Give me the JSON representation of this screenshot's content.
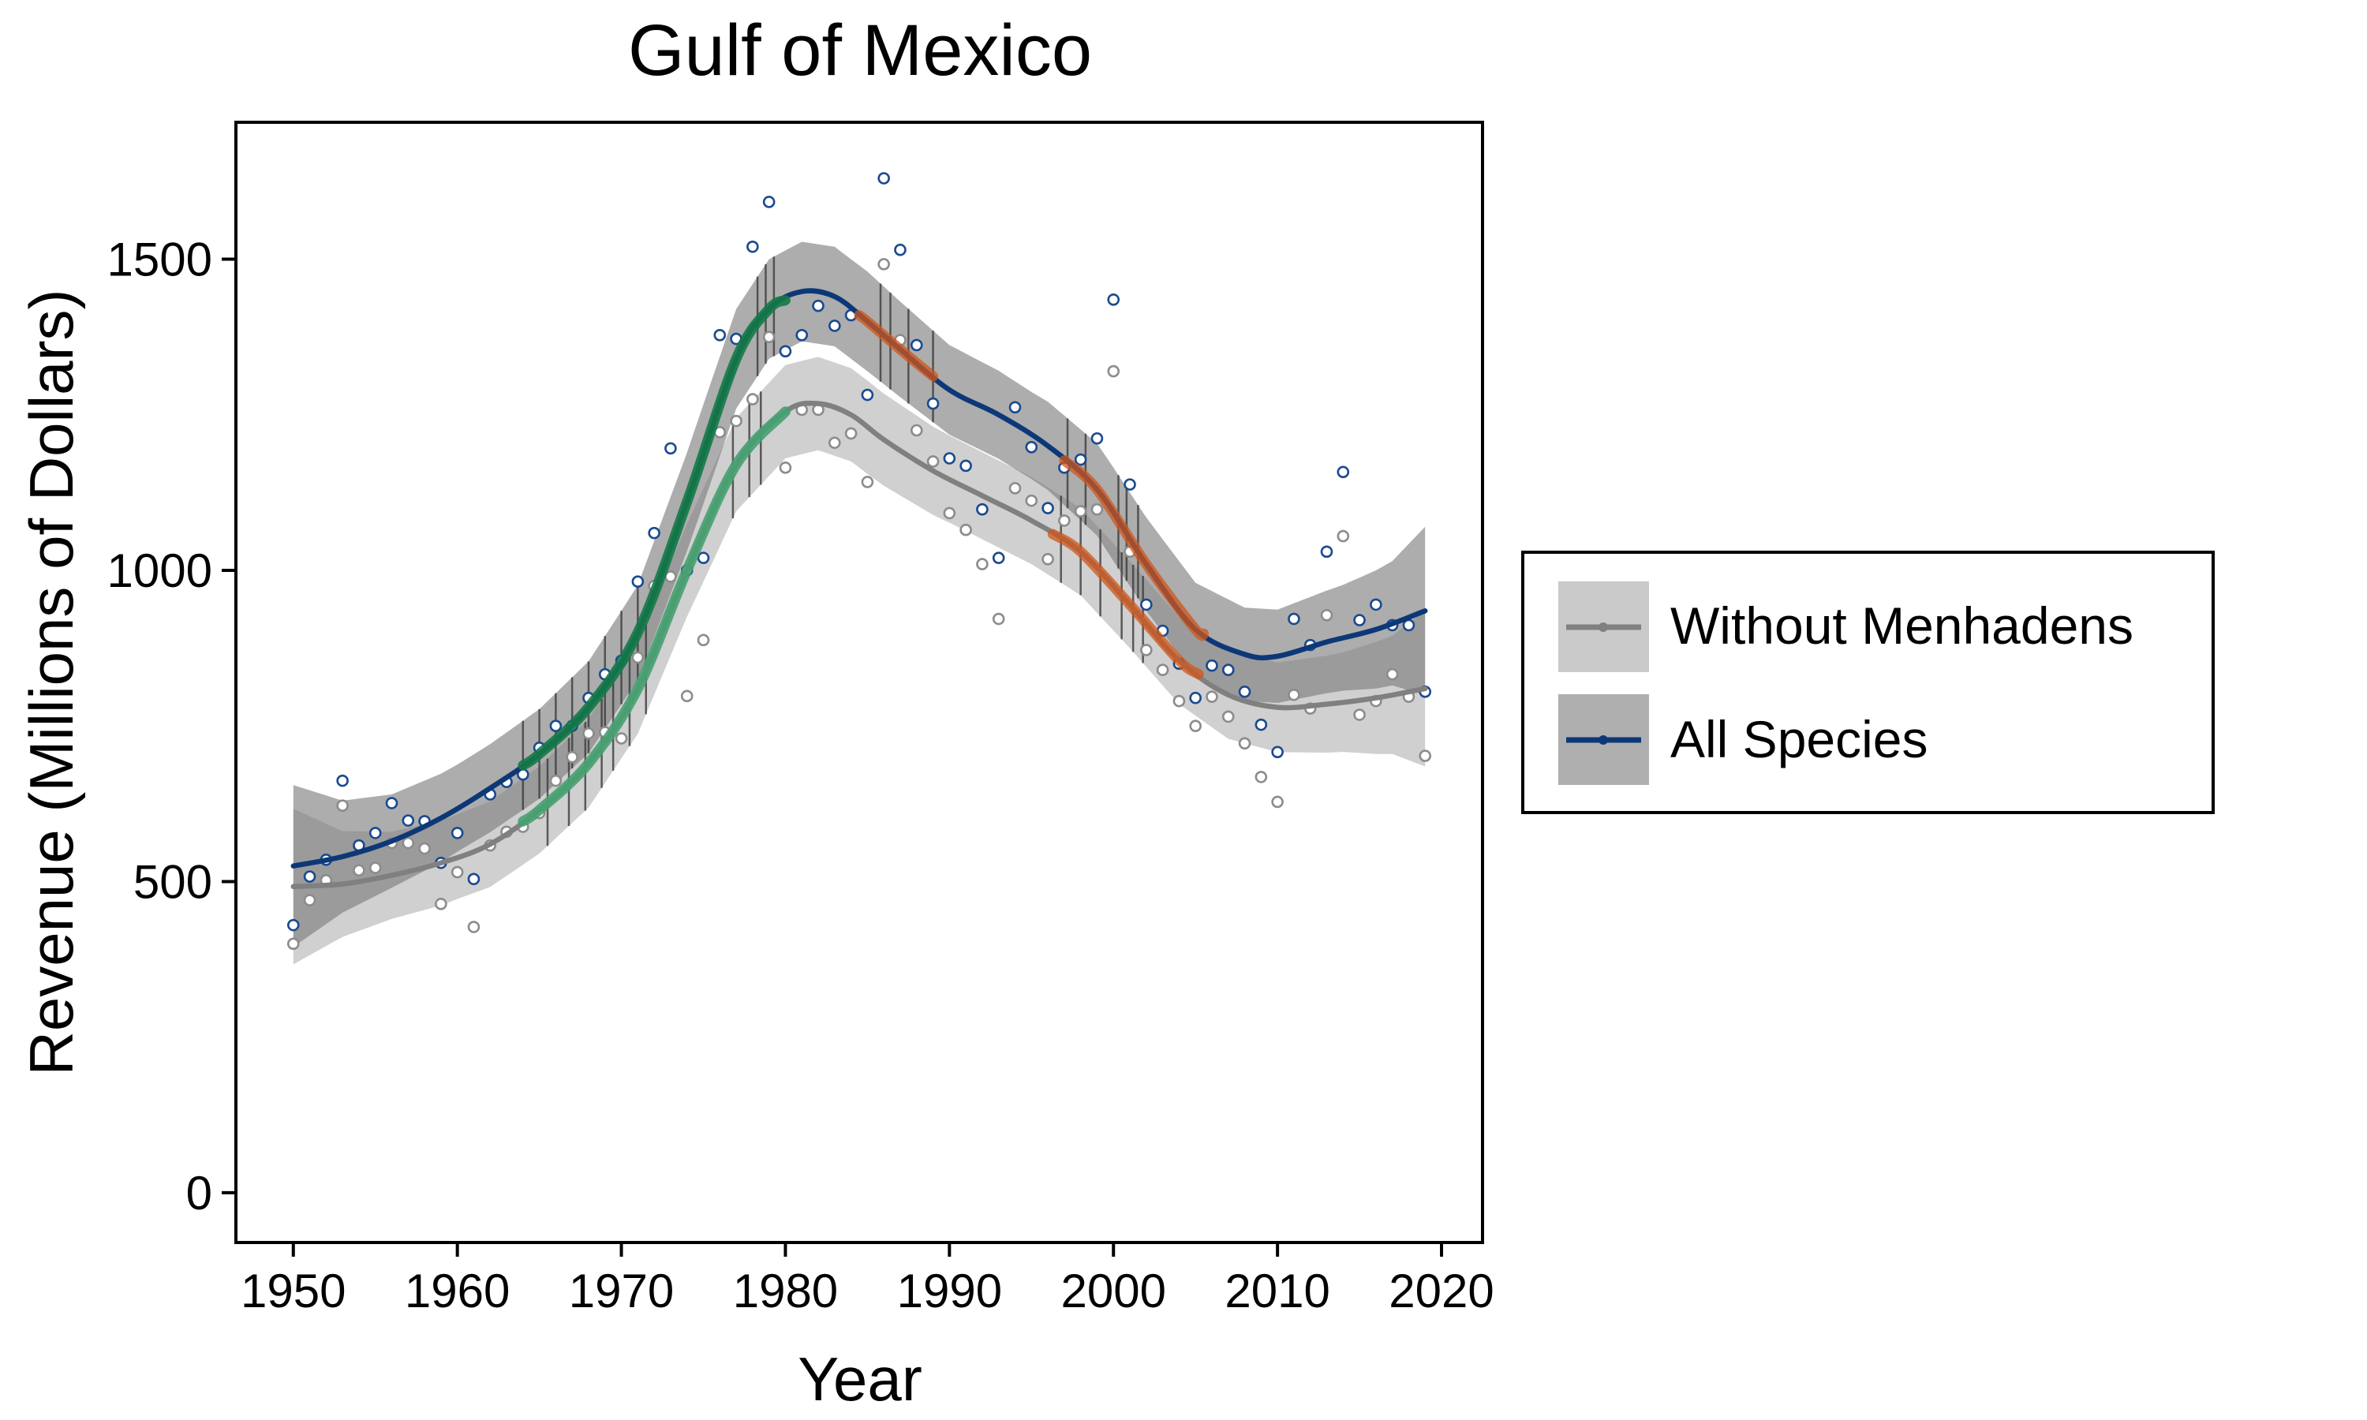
{
  "chart_data": {
    "type": "scatter",
    "title": "Gulf of Mexico",
    "xlabel": "Year",
    "ylabel": "Revenue (Millions of Dollars)",
    "xlim": [
      1946.5,
      2022.5
    ],
    "ylim": [
      -80,
      1720
    ],
    "xticks": [
      1950,
      1960,
      1970,
      1980,
      1990,
      2000,
      2010,
      2020
    ],
    "yticks": [
      0,
      500,
      1000,
      1500
    ],
    "grid": false,
    "legend_position": "right",
    "colors": {
      "all_species": "#0d3878",
      "all_species_points": "#1a4a90",
      "without_menhadens": "#808080",
      "without_menhadens_points": "#8c8c8c",
      "band_all": "#7a7a7a",
      "band_without": "#b3b3b3",
      "increase": "#147a46",
      "increase_light": "#45a070",
      "decrease": "#d0561a",
      "marks": "#3c3c3c"
    },
    "series": [
      {
        "name": "All Species",
        "key": "all_species",
        "points": [
          [
            1950,
            430
          ],
          [
            1951,
            508
          ],
          [
            1952,
            535
          ],
          [
            1953,
            662
          ],
          [
            1954,
            558
          ],
          [
            1955,
            578
          ],
          [
            1956,
            626
          ],
          [
            1957,
            598
          ],
          [
            1958,
            597
          ],
          [
            1959,
            530
          ],
          [
            1960,
            578
          ],
          [
            1961,
            504
          ],
          [
            1962,
            640
          ],
          [
            1963,
            660
          ],
          [
            1964,
            672
          ],
          [
            1965,
            715
          ],
          [
            1966,
            750
          ],
          [
            1967,
            750
          ],
          [
            1968,
            795
          ],
          [
            1969,
            833
          ],
          [
            1970,
            855
          ],
          [
            1971,
            982
          ],
          [
            1972,
            1060
          ],
          [
            1973,
            1196
          ],
          [
            1974,
            1000
          ],
          [
            1975,
            1020
          ],
          [
            1976,
            1378
          ],
          [
            1977,
            1372
          ],
          [
            1978,
            1520
          ],
          [
            1979,
            1592
          ],
          [
            1980,
            1352
          ],
          [
            1981,
            1378
          ],
          [
            1982,
            1425
          ],
          [
            1983,
            1393
          ],
          [
            1984,
            1410
          ],
          [
            1985,
            1282
          ],
          [
            1986,
            1630
          ],
          [
            1987,
            1515
          ],
          [
            1988,
            1362
          ],
          [
            1989,
            1268
          ],
          [
            1990,
            1180
          ],
          [
            1991,
            1168
          ],
          [
            1992,
            1098
          ],
          [
            1993,
            1020
          ],
          [
            1994,
            1262
          ],
          [
            1995,
            1198
          ],
          [
            1996,
            1100
          ],
          [
            1997,
            1165
          ],
          [
            1998,
            1178
          ],
          [
            1999,
            1212
          ],
          [
            2000,
            1435
          ],
          [
            2001,
            1138
          ],
          [
            2002,
            945
          ],
          [
            2003,
            903
          ],
          [
            2004,
            850
          ],
          [
            2005,
            795
          ],
          [
            2006,
            847
          ],
          [
            2007,
            840
          ],
          [
            2008,
            805
          ],
          [
            2009,
            752
          ],
          [
            2010,
            708
          ],
          [
            2011,
            922
          ],
          [
            2012,
            880
          ],
          [
            2013,
            1030
          ],
          [
            2014,
            1158
          ],
          [
            2015,
            920
          ],
          [
            2016,
            945
          ],
          [
            2017,
            912
          ],
          [
            2018,
            912
          ],
          [
            2019,
            805
          ]
        ],
        "fit": [
          [
            1950,
            525
          ],
          [
            1953,
            540
          ],
          [
            1956,
            565
          ],
          [
            1959,
            602
          ],
          [
            1962,
            650
          ],
          [
            1965,
            705
          ],
          [
            1968,
            780
          ],
          [
            1971,
            900
          ],
          [
            1974,
            1110
          ],
          [
            1977,
            1340
          ],
          [
            1979,
            1420
          ],
          [
            1981,
            1448
          ],
          [
            1983,
            1440
          ],
          [
            1985,
            1400
          ],
          [
            1987,
            1355
          ],
          [
            1990,
            1290
          ],
          [
            1993,
            1250
          ],
          [
            1996,
            1200
          ],
          [
            1999,
            1130
          ],
          [
            2002,
            1010
          ],
          [
            2005,
            905
          ],
          [
            2008,
            865
          ],
          [
            2010,
            862
          ],
          [
            2013,
            885
          ],
          [
            2016,
            905
          ],
          [
            2019,
            935
          ]
        ],
        "band_half_width": [
          [
            1950,
            130
          ],
          [
            1953,
            90
          ],
          [
            1956,
            75
          ],
          [
            1960,
            70
          ],
          [
            1965,
            72
          ],
          [
            1970,
            75
          ],
          [
            1975,
            80
          ],
          [
            1980,
            80
          ],
          [
            1985,
            80
          ],
          [
            1990,
            72
          ],
          [
            1995,
            70
          ],
          [
            2000,
            75
          ],
          [
            2005,
            75
          ],
          [
            2010,
            75
          ],
          [
            2014,
            85
          ],
          [
            2017,
            100
          ],
          [
            2019,
            135
          ]
        ],
        "increase_spans": [
          [
            1964,
            1980
          ]
        ],
        "decrease_spans": [
          [
            1984.5,
            1989
          ],
          [
            1997,
            2005.5
          ]
        ],
        "marked_years": [
          1964,
          1965,
          1966,
          1967,
          1968,
          1969,
          1970,
          1971,
          1978.3,
          1978.8,
          1979.3,
          1985.8,
          1986.4,
          1987.5,
          1989,
          1997.2,
          1998.3,
          2000.3,
          2000.8,
          2001.5
        ]
      },
      {
        "name": "Without Menhadens",
        "key": "without_menhadens",
        "points": [
          [
            1950,
            400
          ],
          [
            1951,
            470
          ],
          [
            1952,
            502
          ],
          [
            1953,
            622
          ],
          [
            1954,
            518
          ],
          [
            1955,
            522
          ],
          [
            1956,
            562
          ],
          [
            1957,
            562
          ],
          [
            1958,
            553
          ],
          [
            1959,
            464
          ],
          [
            1960,
            515
          ],
          [
            1961,
            427
          ],
          [
            1962,
            558
          ],
          [
            1963,
            580
          ],
          [
            1964,
            588
          ],
          [
            1965,
            610
          ],
          [
            1966,
            662
          ],
          [
            1967,
            700
          ],
          [
            1968,
            738
          ],
          [
            1969,
            740
          ],
          [
            1970,
            730
          ],
          [
            1971,
            860
          ],
          [
            1972,
            975
          ],
          [
            1973,
            990
          ],
          [
            1974,
            798
          ],
          [
            1975,
            888
          ],
          [
            1976,
            1222
          ],
          [
            1977,
            1240
          ],
          [
            1978,
            1275
          ],
          [
            1979,
            1375
          ],
          [
            1980,
            1165
          ],
          [
            1981,
            1258
          ],
          [
            1982,
            1258
          ],
          [
            1983,
            1205
          ],
          [
            1984,
            1220
          ],
          [
            1985,
            1142
          ],
          [
            1986,
            1492
          ],
          [
            1987,
            1370
          ],
          [
            1988,
            1225
          ],
          [
            1989,
            1175
          ],
          [
            1990,
            1092
          ],
          [
            1991,
            1065
          ],
          [
            1992,
            1010
          ],
          [
            1993,
            922
          ],
          [
            1994,
            1132
          ],
          [
            1995,
            1112
          ],
          [
            1996,
            1018
          ],
          [
            1997,
            1080
          ],
          [
            1998,
            1095
          ],
          [
            1999,
            1098
          ],
          [
            2000,
            1320
          ],
          [
            2001,
            1030
          ],
          [
            2002,
            872
          ],
          [
            2003,
            840
          ],
          [
            2004,
            790
          ],
          [
            2005,
            750
          ],
          [
            2006,
            797
          ],
          [
            2007,
            765
          ],
          [
            2008,
            722
          ],
          [
            2009,
            668
          ],
          [
            2010,
            628
          ],
          [
            2011,
            800
          ],
          [
            2012,
            778
          ],
          [
            2013,
            928
          ],
          [
            2014,
            1055
          ],
          [
            2015,
            768
          ],
          [
            2016,
            790
          ],
          [
            2017,
            833
          ],
          [
            2018,
            797
          ],
          [
            2019,
            702
          ]
        ],
        "fit": [
          [
            1950,
            492
          ],
          [
            1953,
            496
          ],
          [
            1956,
            510
          ],
          [
            1959,
            530
          ],
          [
            1962,
            560
          ],
          [
            1965,
            615
          ],
          [
            1968,
            690
          ],
          [
            1971,
            810
          ],
          [
            1974,
            1000
          ],
          [
            1977,
            1170
          ],
          [
            1980,
            1255
          ],
          [
            1982,
            1268
          ],
          [
            1984,
            1250
          ],
          [
            1986,
            1210
          ],
          [
            1989,
            1160
          ],
          [
            1992,
            1120
          ],
          [
            1995,
            1080
          ],
          [
            1998,
            1030
          ],
          [
            2001,
            945
          ],
          [
            2004,
            855
          ],
          [
            2007,
            800
          ],
          [
            2010,
            780
          ],
          [
            2013,
            785
          ],
          [
            2016,
            795
          ],
          [
            2019,
            810
          ]
        ],
        "band_half_width": [
          [
            1950,
            125
          ],
          [
            1953,
            85
          ],
          [
            1956,
            70
          ],
          [
            1960,
            68
          ],
          [
            1965,
            70
          ],
          [
            1970,
            72
          ],
          [
            1975,
            75
          ],
          [
            1980,
            75
          ],
          [
            1985,
            75
          ],
          [
            1990,
            70
          ],
          [
            1995,
            70
          ],
          [
            2000,
            70
          ],
          [
            2005,
            70
          ],
          [
            2010,
            72
          ],
          [
            2014,
            80
          ],
          [
            2017,
            95
          ],
          [
            2019,
            125
          ]
        ],
        "increase_spans": [
          [
            1964,
            1980
          ]
        ],
        "decrease_spans": [
          [
            1996.3,
            2005.2
          ]
        ],
        "marked_years": [
          1965.5,
          1966.8,
          1967.8,
          1968.8,
          1969.5,
          1970.5,
          1971.5,
          1976.8,
          1977.8,
          1978.5,
          1996.8,
          1998,
          1999.2,
          2000.5,
          2001.2,
          2001.8
        ]
      }
    ]
  }
}
